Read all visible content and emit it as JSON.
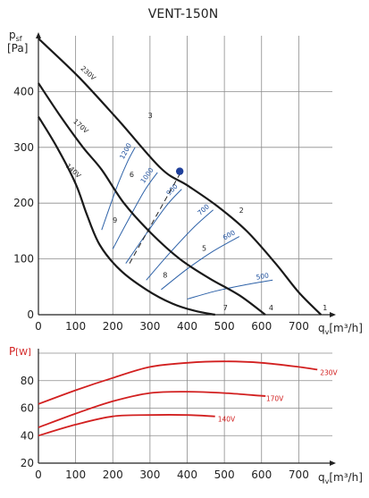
{
  "title": "VENT-150N",
  "colors": {
    "system": "#1a1a1a",
    "iso": "#2e62a8",
    "power": "#d22020",
    "grid": "#8c8c8c",
    "point": "#1f3f9a"
  },
  "chart_data": [
    {
      "type": "line",
      "ylabel_main": "p",
      "ylabel_sub": "sf",
      "ylabel_unit": "[Pa]",
      "xlabel_main": "q",
      "xlabel_sub": "v",
      "xlabel_unit": "[m³/h]",
      "xlim": [
        0,
        800
      ],
      "ylim": [
        0,
        500
      ],
      "xticks": [
        0,
        100,
        200,
        300,
        400,
        500,
        600,
        700
      ],
      "yticks": [
        0,
        100,
        200,
        300,
        400
      ],
      "grid": true,
      "fan_curves": [
        {
          "name": "230V",
          "points": [
            [
              0,
              495
            ],
            [
              110,
              425
            ],
            [
              220,
              345
            ],
            [
              330,
              262
            ],
            [
              400,
              232
            ],
            [
              480,
              195
            ],
            [
              560,
              150
            ],
            [
              640,
              90
            ],
            [
              700,
              40
            ],
            [
              760,
              0
            ]
          ]
        },
        {
          "name": "170V",
          "points": [
            [
              0,
              415
            ],
            [
              60,
              355
            ],
            [
              120,
              300
            ],
            [
              170,
              260
            ],
            [
              230,
              200
            ],
            [
              300,
              148
            ],
            [
              380,
              100
            ],
            [
              460,
              65
            ],
            [
              540,
              35
            ],
            [
              610,
              0
            ]
          ]
        },
        {
          "name": "140V",
          "points": [
            [
              0,
              355
            ],
            [
              50,
              300
            ],
            [
              100,
              235
            ],
            [
              130,
              180
            ],
            [
              165,
              125
            ],
            [
              220,
              80
            ],
            [
              290,
              45
            ],
            [
              360,
              20
            ],
            [
              420,
              7
            ],
            [
              475,
              0
            ]
          ]
        }
      ],
      "curve_numbers": [
        {
          "label": "1",
          "x": 755,
          "y": 3
        },
        {
          "label": "2",
          "x": 530,
          "y": 178
        },
        {
          "label": "3",
          "x": 285,
          "y": 348
        },
        {
          "label": "4",
          "x": 610,
          "y": 3
        },
        {
          "label": "5",
          "x": 430,
          "y": 110
        },
        {
          "label": "6",
          "x": 235,
          "y": 242
        },
        {
          "label": "7",
          "x": 487,
          "y": 3
        },
        {
          "label": "8",
          "x": 325,
          "y": 62
        },
        {
          "label": "9",
          "x": 190,
          "y": 160
        }
      ],
      "system_curves": [
        {
          "name": "1200",
          "points": [
            [
              170,
              152
            ],
            [
              190,
              190
            ],
            [
              215,
              236
            ],
            [
              240,
              275
            ],
            [
              260,
              300
            ]
          ]
        },
        {
          "name": "1000",
          "points": [
            [
              200,
              118
            ],
            [
              240,
              168
            ],
            [
              285,
              222
            ],
            [
              320,
              255
            ]
          ]
        },
        {
          "name": "900",
          "points": [
            [
              235,
              92
            ],
            [
              290,
              145
            ],
            [
              345,
              196
            ],
            [
              385,
              225
            ]
          ]
        },
        {
          "name": "700",
          "points": [
            [
              290,
              62
            ],
            [
              355,
              112
            ],
            [
              420,
              158
            ],
            [
              470,
              188
            ]
          ]
        },
        {
          "name": "600",
          "points": [
            [
              330,
              45
            ],
            [
              400,
              82
            ],
            [
              470,
              114
            ],
            [
              540,
              140
            ]
          ]
        },
        {
          "name": "500",
          "points": [
            [
              400,
              28
            ],
            [
              480,
              43
            ],
            [
              560,
              54
            ],
            [
              630,
              62
            ]
          ]
        }
      ],
      "design_line": [
        [
          245,
          92
        ],
        [
          380,
          252
        ]
      ],
      "operating_point": {
        "x": 380,
        "y": 257
      }
    },
    {
      "type": "line",
      "ylabel_main": "P",
      "ylabel_unit": "[W]",
      "xlabel_main": "q",
      "xlabel_sub": "v",
      "xlabel_unit": "[m³/h]",
      "xlim": [
        0,
        800
      ],
      "ylim": [
        20,
        100
      ],
      "xticks": [
        0,
        100,
        200,
        300,
        400,
        500,
        600,
        700
      ],
      "yticks": [
        20,
        40,
        60,
        80
      ],
      "grid": true,
      "series": [
        {
          "name": "230V",
          "points": [
            [
              0,
              63
            ],
            [
              100,
              73
            ],
            [
              200,
              82
            ],
            [
              300,
              90
            ],
            [
              400,
              93
            ],
            [
              500,
              94
            ],
            [
              600,
              93
            ],
            [
              700,
              90
            ],
            [
              750,
              88
            ]
          ]
        },
        {
          "name": "170V",
          "points": [
            [
              0,
              46
            ],
            [
              100,
              56
            ],
            [
              200,
              65
            ],
            [
              300,
              71
            ],
            [
              400,
              72
            ],
            [
              500,
              71
            ],
            [
              600,
              69
            ],
            [
              605,
              69
            ]
          ]
        },
        {
          "name": "140V",
          "points": [
            [
              0,
              40
            ],
            [
              100,
              48
            ],
            [
              200,
              54
            ],
            [
              300,
              55
            ],
            [
              400,
              55
            ],
            [
              475,
              54
            ]
          ]
        }
      ]
    }
  ]
}
